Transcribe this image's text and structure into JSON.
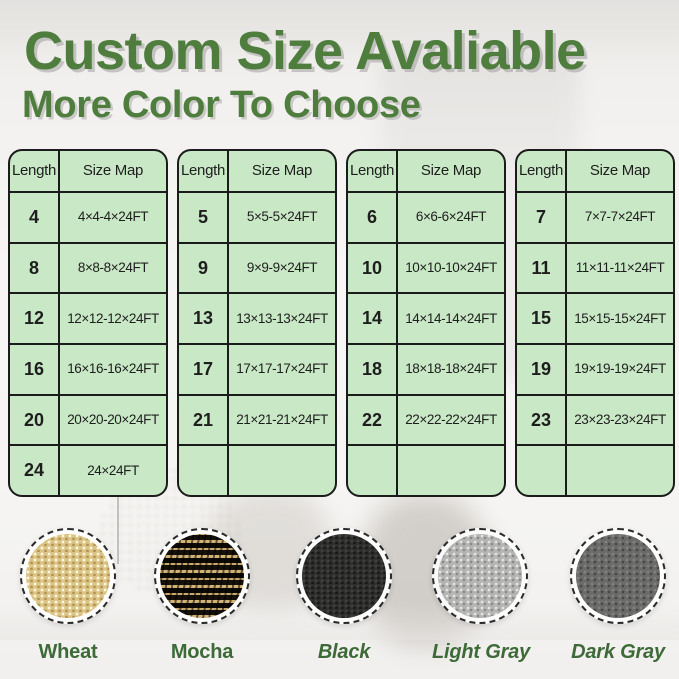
{
  "header": {
    "title": "Custom Size Avaliable",
    "subtitle": "More Color To Choose"
  },
  "colors": {
    "heading_green": "#4e7d3e",
    "swatch_label_green": "#3d6a37",
    "table_cell_green": "#c9e8c5",
    "table_border_black": "#1b1b1b",
    "table_text": "#1e1e1e"
  },
  "size_tables": [
    {
      "headers": [
        "Length",
        "Size Map"
      ],
      "rows": [
        {
          "length": "4",
          "size_map": "4×4-4×24FT"
        },
        {
          "length": "8",
          "size_map": "8×8-8×24FT"
        },
        {
          "length": "12",
          "size_map": "12×12-12×24FT"
        },
        {
          "length": "16",
          "size_map": "16×16-16×24FT"
        },
        {
          "length": "20",
          "size_map": "20×20-20×24FT"
        },
        {
          "length": "24",
          "size_map": "24×24FT"
        }
      ]
    },
    {
      "headers": [
        "Length",
        "Size Map"
      ],
      "rows": [
        {
          "length": "5",
          "size_map": "5×5-5×24FT"
        },
        {
          "length": "9",
          "size_map": "9×9-9×24FT"
        },
        {
          "length": "13",
          "size_map": "13×13-13×24FT"
        },
        {
          "length": "17",
          "size_map": "17×17-17×24FT"
        },
        {
          "length": "21",
          "size_map": "21×21-21×24FT"
        },
        {
          "length": "",
          "size_map": ""
        }
      ]
    },
    {
      "headers": [
        "Length",
        "Size Map"
      ],
      "rows": [
        {
          "length": "6",
          "size_map": "6×6-6×24FT"
        },
        {
          "length": "10",
          "size_map": "10×10-10×24FT"
        },
        {
          "length": "14",
          "size_map": "14×14-14×24FT"
        },
        {
          "length": "18",
          "size_map": "18×18-18×24FT"
        },
        {
          "length": "22",
          "size_map": "22×22-22×24FT"
        },
        {
          "length": "",
          "size_map": ""
        }
      ]
    },
    {
      "headers": [
        "Length",
        "Size Map"
      ],
      "rows": [
        {
          "length": "7",
          "size_map": "7×7-7×24FT"
        },
        {
          "length": "11",
          "size_map": "11×11-11×24FT"
        },
        {
          "length": "15",
          "size_map": "15×15-15×24FT"
        },
        {
          "length": "19",
          "size_map": "19×19-19×24FT"
        },
        {
          "length": "23",
          "size_map": "23×23-23×24FT"
        },
        {
          "length": "",
          "size_map": ""
        }
      ]
    }
  ],
  "swatches": [
    {
      "key": "wheat",
      "label": "Wheat",
      "italic": false,
      "base_color": "#dcc487"
    },
    {
      "key": "mocha",
      "label": "Mocha",
      "italic": false,
      "base_color": "#1a140d"
    },
    {
      "key": "black",
      "label": "Black",
      "italic": true,
      "base_color": "#2e2e2c"
    },
    {
      "key": "light-gray",
      "label": "Light Gray",
      "italic": true,
      "base_color": "#b5b5b3"
    },
    {
      "key": "dark-gray",
      "label": "Dark Gray",
      "italic": true,
      "base_color": "#6b6b69"
    }
  ]
}
